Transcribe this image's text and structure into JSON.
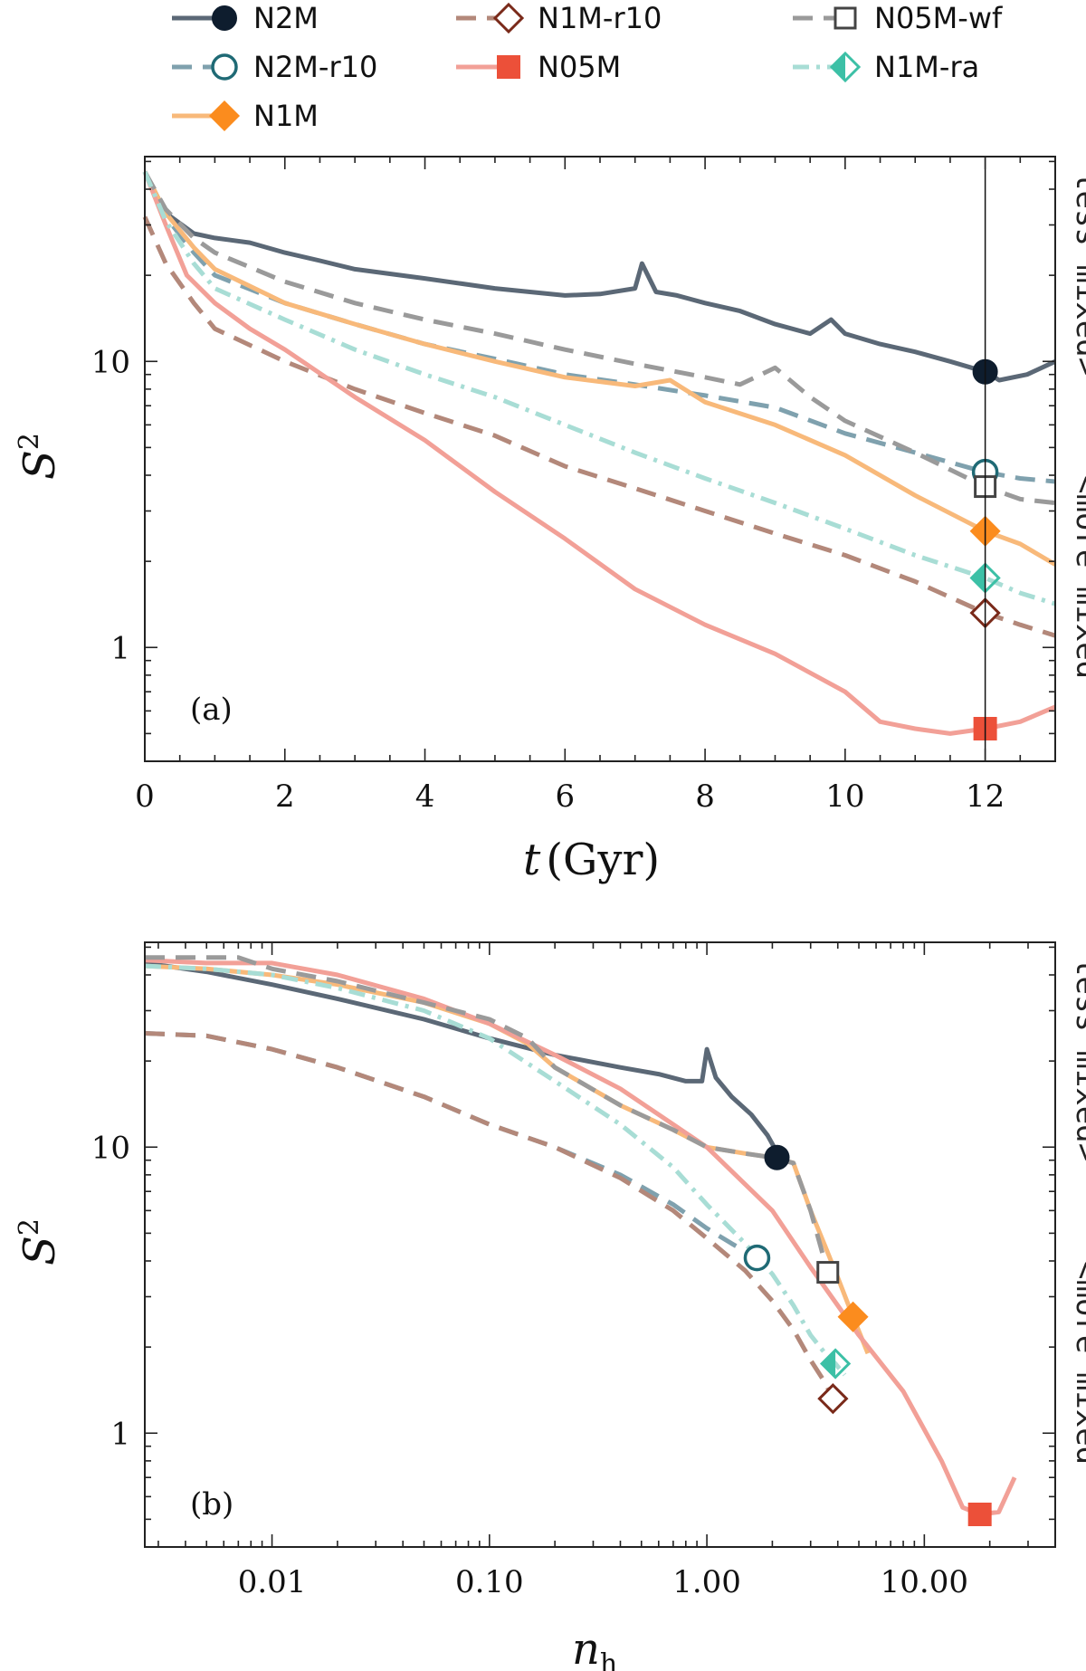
{
  "legend": [
    {
      "id": "N2M",
      "label": "N2M",
      "color": "#5b6876",
      "markerColor": "#0e1d2e",
      "dash": "solid",
      "marker": "circle-filled"
    },
    {
      "id": "N2M-r10",
      "label": "N2M-r10",
      "color": "#7fa1ae",
      "markerColor": "#1f6a75",
      "dash": "dashed",
      "marker": "circle-open"
    },
    {
      "id": "N1M",
      "label": "N1M",
      "color": "#f8b97a",
      "markerColor": "#fb8c1e",
      "dash": "solid",
      "marker": "diamond-filled"
    },
    {
      "id": "N1M-r10",
      "label": "N1M-r10",
      "color": "#b3887a",
      "markerColor": "#7a2a1a",
      "dash": "dashed",
      "marker": "diamond-open"
    },
    {
      "id": "N05M",
      "label": "N05M",
      "color": "#f2a097",
      "markerColor": "#ec5039",
      "dash": "solid",
      "marker": "square-filled"
    },
    {
      "id": "N05M-wf",
      "label": "N05M-wf",
      "color": "#9a9a9a",
      "markerColor": "#444444",
      "dash": "dashed",
      "marker": "square-open"
    },
    {
      "id": "N1M-ra",
      "label": "N1M-ra",
      "color": "#a8ddd5",
      "markerColor": "#3cc0a6",
      "dash": "dashdot",
      "marker": "diamond-half"
    }
  ],
  "panel_a": {
    "label": "(a)",
    "xlabel_italic": "t",
    "xlabel_unit": "(Gyr)",
    "ylabel": "S",
    "ylabel_sup": "2",
    "side_top": "less mixed>",
    "side_bottom": "<more mixed",
    "xticks": [
      "0",
      "2",
      "4",
      "6",
      "8",
      "10",
      "12"
    ],
    "yticks": [
      "1",
      "10"
    ]
  },
  "panel_b": {
    "label": "(b)",
    "xlabel_italic": "n",
    "xlabel_sub": "h",
    "ylabel": "S",
    "ylabel_sup": "2",
    "side_top": "less mixed>",
    "side_bottom": "<more mixed",
    "xticks": [
      "0.01",
      "0.10",
      "1.00",
      "10.00"
    ],
    "yticks": [
      "1",
      "10"
    ]
  },
  "chart_data": [
    {
      "type": "line",
      "panel": "a",
      "xlabel": "t (Gyr)",
      "ylabel": "S^2",
      "xlim": [
        0,
        13
      ],
      "ylim": [
        0.4,
        52
      ],
      "yscale": "log",
      "vline_x": 12,
      "series": [
        {
          "name": "N2M",
          "x": [
            0,
            0.3,
            0.7,
            1,
            1.5,
            2,
            2.5,
            3,
            4,
            5,
            6,
            6.5,
            7,
            7.1,
            7.3,
            7.6,
            8,
            8.5,
            9,
            9.5,
            9.8,
            10,
            10.5,
            11,
            11.5,
            12,
            12.2,
            12.6,
            13
          ],
          "values": [
            46,
            33,
            28,
            27,
            26,
            24,
            22.5,
            21,
            19.5,
            18,
            17,
            17.2,
            18,
            22,
            17.5,
            17,
            16,
            15,
            13.5,
            12.5,
            14,
            12.5,
            11.5,
            10.8,
            10,
            9.2,
            8.6,
            9,
            10
          ],
          "marker_x": 12,
          "marker_y": 9.2
        },
        {
          "name": "N2M-r10",
          "x": [
            0,
            0.3,
            0.7,
            1,
            2,
            3,
            4,
            5,
            6,
            7,
            8,
            9,
            10,
            11,
            12,
            12.5,
            13
          ],
          "values": [
            46,
            32,
            24,
            20,
            16,
            13.5,
            11.5,
            10.2,
            9,
            8.3,
            7.6,
            6.9,
            5.6,
            4.8,
            4.1,
            3.9,
            3.8
          ],
          "marker_x": 12,
          "marker_y": 4.1
        },
        {
          "name": "N1M",
          "x": [
            0,
            0.3,
            0.7,
            1,
            2,
            3,
            4,
            5,
            6,
            7,
            7.5,
            8,
            9,
            10,
            11,
            12,
            12.5,
            13
          ],
          "values": [
            46,
            33,
            25,
            21,
            16,
            13.5,
            11.5,
            10,
            8.8,
            8.2,
            8.6,
            7.2,
            6,
            4.7,
            3.4,
            2.55,
            2.3,
            1.95
          ],
          "marker_x": 12,
          "marker_y": 2.55
        },
        {
          "name": "N1M-r10",
          "x": [
            0,
            0.3,
            0.7,
            1,
            2,
            3,
            4,
            5,
            6,
            7,
            8,
            9,
            10,
            11,
            12,
            12.5,
            13
          ],
          "values": [
            32,
            22,
            16,
            13,
            10,
            8,
            6.6,
            5.5,
            4.3,
            3.6,
            3,
            2.5,
            2.1,
            1.7,
            1.32,
            1.2,
            1.1
          ],
          "marker_x": 12,
          "marker_y": 1.32
        },
        {
          "name": "N05M",
          "x": [
            0,
            0.3,
            0.6,
            1,
            1.5,
            2,
            3,
            4,
            5,
            6,
            7,
            8,
            9,
            10,
            10.5,
            11,
            11.5,
            12,
            12.5,
            13
          ],
          "values": [
            46,
            30,
            20,
            16,
            13,
            11,
            7.5,
            5.3,
            3.5,
            2.4,
            1.6,
            1.2,
            0.95,
            0.7,
            0.55,
            0.52,
            0.5,
            0.52,
            0.55,
            0.62
          ],
          "marker_x": 12,
          "marker_y": 0.52
        },
        {
          "name": "N05M-wf",
          "x": [
            0,
            0.3,
            0.7,
            1,
            2,
            3,
            4,
            5,
            6,
            7,
            8,
            8.5,
            9,
            9.5,
            10,
            11,
            12,
            12.5,
            13
          ],
          "values": [
            46,
            34,
            27,
            24,
            19,
            16,
            14,
            12.5,
            11,
            9.8,
            8.8,
            8.3,
            9.5,
            7.5,
            6.2,
            4.8,
            3.65,
            3.3,
            3.2
          ],
          "marker_x": 12,
          "marker_y": 3.65
        },
        {
          "name": "N1M-ra",
          "x": [
            0,
            0.3,
            0.7,
            1,
            2,
            3,
            4,
            5,
            6,
            7,
            8,
            9,
            10,
            11,
            12,
            12.5,
            13
          ],
          "values": [
            46,
            31,
            22,
            18,
            14,
            11,
            9,
            7.5,
            6,
            4.8,
            3.9,
            3.2,
            2.6,
            2.1,
            1.75,
            1.55,
            1.42
          ],
          "marker_x": 12,
          "marker_y": 1.75
        }
      ]
    },
    {
      "type": "line",
      "panel": "b",
      "xlabel": "n_h",
      "ylabel": "S^2",
      "xscale": "log",
      "yscale": "log",
      "xlim": [
        0.0026,
        40
      ],
      "ylim": [
        0.4,
        52
      ],
      "series": [
        {
          "name": "N2M",
          "x": [
            0.0026,
            0.005,
            0.01,
            0.02,
            0.05,
            0.1,
            0.2,
            0.4,
            0.6,
            0.8,
            0.95,
            1.0,
            1.1,
            1.3,
            1.6,
            1.9,
            2.1,
            2.3
          ],
          "values": [
            44,
            41,
            37,
            33,
            28,
            24,
            21,
            19,
            18,
            17,
            17,
            22,
            17.5,
            15,
            13,
            11,
            9.6,
            9.2
          ],
          "marker_x": 2.1,
          "marker_y": 9.2
        },
        {
          "name": "N2M-r10",
          "x": [
            0.0026,
            0.005,
            0.01,
            0.02,
            0.05,
            0.1,
            0.2,
            0.4,
            0.7,
            1.0,
            1.3,
            1.6,
            1.7
          ],
          "values": [
            25,
            24.5,
            22,
            19,
            15,
            12,
            10,
            8,
            6.3,
            5.2,
            4.6,
            4.2,
            4.1
          ],
          "marker_x": 1.7,
          "marker_y": 4.1
        },
        {
          "name": "N1M",
          "x": [
            0.0026,
            0.005,
            0.01,
            0.02,
            0.05,
            0.1,
            0.15,
            0.2,
            0.4,
            0.7,
            1.0,
            1.5,
            2.0,
            2.5,
            3.0,
            3.5,
            4.0,
            4.7,
            5.5
          ],
          "values": [
            43,
            42,
            40,
            37,
            32,
            27,
            23,
            19,
            14,
            11.5,
            10,
            9.5,
            9.2,
            8.8,
            6,
            4.5,
            3.5,
            2.55,
            1.9
          ],
          "marker_x": 4.7,
          "marker_y": 2.55
        },
        {
          "name": "N1M-r10",
          "x": [
            0.0026,
            0.005,
            0.01,
            0.02,
            0.05,
            0.1,
            0.2,
            0.4,
            0.7,
            1.0,
            1.5,
            2.0,
            2.5,
            3.0,
            3.5,
            3.8,
            4.2
          ],
          "values": [
            25,
            24.5,
            22,
            19,
            15,
            12,
            10,
            7.8,
            6,
            4.8,
            3.7,
            2.9,
            2.3,
            1.8,
            1.5,
            1.32,
            1.2
          ],
          "marker_x": 3.8,
          "marker_y": 1.32
        },
        {
          "name": "N05M",
          "x": [
            0.0026,
            0.005,
            0.01,
            0.02,
            0.05,
            0.1,
            0.2,
            0.4,
            0.7,
            1.0,
            2,
            3,
            5,
            8,
            12,
            15,
            18,
            22,
            26
          ],
          "values": [
            45,
            44,
            44,
            40,
            33,
            27,
            21,
            16,
            12,
            10,
            6,
            3.8,
            2.2,
            1.4,
            0.8,
            0.55,
            0.52,
            0.53,
            0.7
          ],
          "marker_x": 18,
          "marker_y": 0.52
        },
        {
          "name": "N05M-wf",
          "x": [
            0.0026,
            0.007,
            0.01,
            0.02,
            0.05,
            0.1,
            0.15,
            0.2,
            0.4,
            0.7,
            1.0,
            1.5,
            2.0,
            2.5,
            3.0,
            3.6,
            4.2
          ],
          "values": [
            46,
            46,
            42,
            38,
            32,
            28,
            24,
            19,
            14,
            11.5,
            10,
            9.5,
            9.2,
            8.8,
            6,
            3.65,
            3.3
          ],
          "marker_x": 3.6,
          "marker_y": 3.65
        },
        {
          "name": "N1M-ra",
          "x": [
            0.0026,
            0.005,
            0.01,
            0.02,
            0.05,
            0.1,
            0.2,
            0.4,
            0.7,
            1.0,
            1.5,
            2.0,
            2.5,
            3.0,
            3.5,
            3.9,
            4.3
          ],
          "values": [
            43,
            42,
            40,
            36,
            30,
            24,
            17,
            12,
            8.5,
            6.3,
            4.6,
            3.6,
            2.8,
            2.2,
            1.9,
            1.75,
            1.6
          ],
          "marker_x": 3.9,
          "marker_y": 1.75
        }
      ]
    }
  ]
}
